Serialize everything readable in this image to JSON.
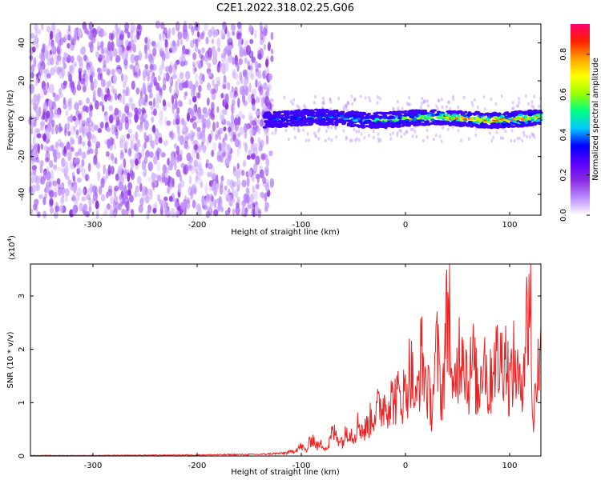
{
  "figure": {
    "title": "C2E1.2022.318.02.25.G06"
  },
  "chart_data": [
    {
      "type": "heatmap",
      "title": "C2E1.2022.318.02.25.G06",
      "xlabel": "Height of straight line (km)",
      "ylabel": "Frequency (Hz)",
      "xlim": [
        -360,
        130
      ],
      "ylim": [
        -51,
        50
      ],
      "xticks": [
        -300,
        -200,
        -100,
        0,
        100
      ],
      "yticks": [
        -40,
        -20,
        0,
        20,
        40
      ],
      "colorbar": {
        "label": "Normalized spectral amplitude",
        "range": [
          0,
          0.95
        ],
        "ticks": [
          0.0,
          0.2,
          0.4,
          0.6,
          0.8
        ],
        "colormap": [
          "#ffffff",
          "#ba8cff",
          "#8a2be2",
          "#5a00ff",
          "#0000ff",
          "#00c8ff",
          "#00ff80",
          "#9aff00",
          "#ffff00",
          "#ffa000",
          "#ff2000",
          "#ff0070"
        ]
      },
      "regions": [
        {
          "name": "noise",
          "x_range": [
            -360,
            -128
          ],
          "freq_range": [
            -51,
            50
          ],
          "amplitude_range": [
            0.0,
            0.15
          ]
        },
        {
          "name": "signal",
          "x_range": [
            -135,
            130
          ],
          "freq_center": 0,
          "freq_halfwidth": 4,
          "amplitude_range": [
            0.1,
            0.95
          ]
        }
      ],
      "signal_profile": {
        "x": [
          -135,
          -120,
          -100,
          -80,
          -60,
          -40,
          -20,
          0,
          20,
          40,
          60,
          80,
          100,
          120,
          130
        ],
        "peak_amplitude": [
          0.4,
          0.45,
          0.45,
          0.5,
          0.5,
          0.55,
          0.6,
          0.65,
          0.75,
          0.9,
          0.85,
          0.9,
          0.9,
          0.95,
          0.9
        ]
      }
    },
    {
      "type": "line",
      "xlabel": "Height of straight line (km)",
      "ylabel": "SNR (10 * v/v)",
      "y_multiplier": "(x10",
      "y_multiplier_exp": "4",
      "y_multiplier_close": ")",
      "xlim": [
        -360,
        130
      ],
      "ylim": [
        0,
        3.6
      ],
      "xticks": [
        -300,
        -200,
        -100,
        0,
        100
      ],
      "yticks": [
        0,
        1,
        2,
        3
      ],
      "series": [
        {
          "color": "#ee2222",
          "x": [
            -360,
            -300,
            -200,
            -140,
            -120,
            -110,
            -100,
            -95,
            -90,
            -85,
            -80,
            -75,
            -70,
            -60,
            -55,
            -50,
            -45,
            -40,
            -30,
            -20,
            -10,
            0,
            5,
            10,
            15,
            20,
            25,
            30,
            35,
            40,
            42,
            45,
            50,
            55,
            60,
            65,
            70,
            75,
            80,
            85,
            90,
            95,
            100,
            105,
            110,
            115,
            118,
            120,
            122,
            125,
            130
          ],
          "y": [
            0.01,
            0.01,
            0.02,
            0.03,
            0.05,
            0.08,
            0.2,
            0.1,
            0.4,
            0.2,
            0.25,
            0.15,
            0.5,
            0.3,
            0.6,
            0.4,
            0.7,
            0.5,
            0.9,
            1.1,
            1.2,
            1.3,
            1.9,
            1.0,
            2.1,
            1.5,
            1.0,
            2.2,
            1.2,
            2.9,
            3.4,
            1.0,
            2.0,
            2.5,
            1.5,
            2.0,
            1.2,
            2.4,
            1.2,
            2.2,
            1.8,
            2.3,
            1.5,
            2.0,
            1.3,
            2.5,
            3.0,
            3.7,
            0.4,
            1.6,
            2.1
          ]
        }
      ]
    }
  ]
}
